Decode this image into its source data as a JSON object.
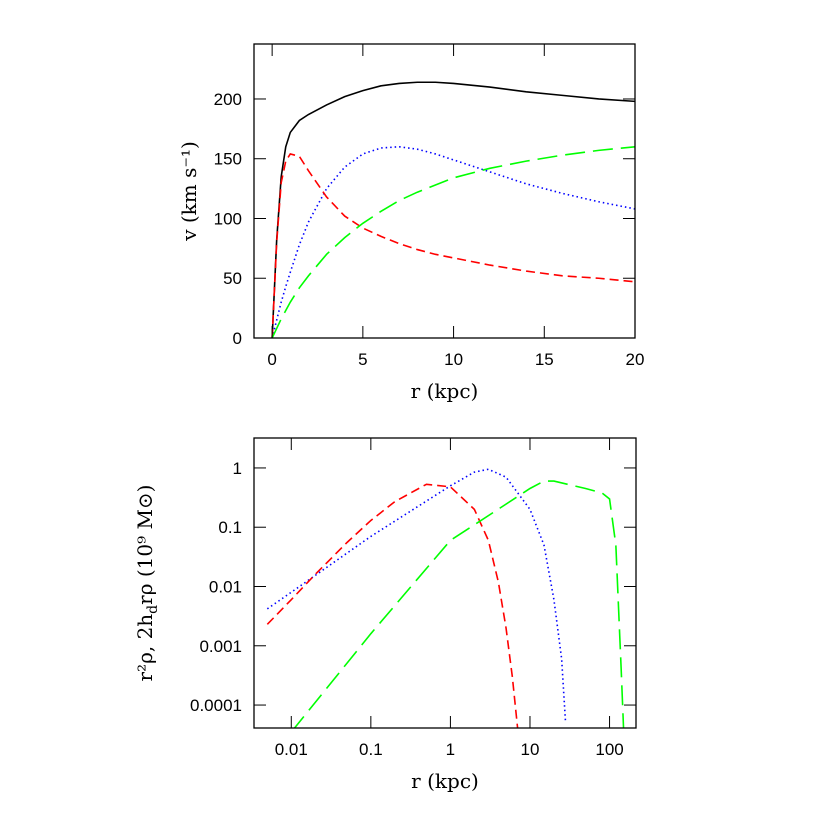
{
  "chart_data": [
    {
      "type": "line",
      "xlabel": "r (kpc)",
      "ylabel": "v (km s⁻¹)",
      "xlim": [
        -1,
        20
      ],
      "ylim": [
        0,
        246
      ],
      "xticks": [
        0,
        5,
        10,
        15,
        20
      ],
      "yticks": [
        0,
        50,
        100,
        150,
        200
      ],
      "x": [
        0,
        0.25,
        0.5,
        0.75,
        1,
        1.5,
        2,
        3,
        4,
        5,
        6,
        7,
        8,
        9,
        10,
        12,
        14,
        16,
        18,
        20
      ],
      "series": [
        {
          "color": "#000000",
          "dash": "solid",
          "values": [
            0,
            82,
            135,
            160,
            172,
            182,
            187,
            195,
            202,
            207,
            211,
            213,
            214,
            214,
            213,
            210,
            206,
            203,
            200,
            198
          ]
        },
        {
          "color": "#0000ff",
          "dash": "dotted",
          "values": [
            0,
            15,
            30,
            43,
            55,
            78,
            97,
            125,
            143,
            154,
            159,
            160,
            158,
            154,
            149,
            139,
            129,
            121,
            114,
            108
          ]
        },
        {
          "color": "#ff0000",
          "dash": "dashed",
          "values": [
            0,
            80,
            130,
            148,
            154,
            152,
            140,
            118,
            102,
            92,
            85,
            79,
            74,
            70,
            67,
            61,
            56,
            52,
            50,
            47
          ]
        },
        {
          "color": "#00ff00",
          "dash": "long-dashed",
          "values": [
            0,
            8,
            16,
            23,
            30,
            42,
            52,
            70,
            84,
            96,
            106,
            115,
            122,
            128,
            134,
            142,
            148,
            153,
            157,
            160
          ]
        }
      ]
    },
    {
      "type": "line",
      "xscale": "log",
      "yscale": "log",
      "xlabel": "r (kpc)",
      "ylabel": [
        "r²ρ, 2h",
        "d",
        "rρ    (10⁹ M⊙)"
      ],
      "xlim": [
        0.0034,
        215
      ],
      "ylim": [
        4.1e-05,
        3.2
      ],
      "xticks": [
        0.01,
        0.1,
        1,
        10,
        100
      ],
      "yticks": [
        0.0001,
        0.001,
        0.01,
        0.1,
        1
      ],
      "series": [
        {
          "color": "#0000ff",
          "dash": "dotted",
          "x": [
            0.005,
            0.01,
            0.1,
            1,
            2,
            3,
            5,
            10,
            15,
            20,
            25,
            28
          ],
          "values": [
            0.0042,
            0.008,
            0.07,
            0.5,
            0.85,
            0.95,
            0.7,
            0.2,
            0.05,
            0.006,
            0.0006,
            5e-05
          ]
        },
        {
          "color": "#ff0000",
          "dash": "dashed",
          "x": [
            0.005,
            0.01,
            0.02,
            0.05,
            0.1,
            0.2,
            0.5,
            1,
            2,
            3,
            4,
            5,
            6,
            7
          ],
          "values": [
            0.0023,
            0.006,
            0.016,
            0.055,
            0.13,
            0.27,
            0.53,
            0.48,
            0.2,
            0.06,
            0.012,
            0.002,
            0.0003,
            4e-05
          ]
        },
        {
          "color": "#00ff00",
          "dash": "long-dashed",
          "x": [
            0.01,
            0.1,
            1,
            10,
            15,
            20,
            50,
            80,
            100,
            120,
            140,
            150
          ],
          "values": [
            3.5e-05,
            0.0016,
            0.06,
            0.45,
            0.6,
            0.6,
            0.45,
            0.38,
            0.3,
            0.05,
            0.0004,
            4e-05
          ]
        }
      ]
    }
  ]
}
